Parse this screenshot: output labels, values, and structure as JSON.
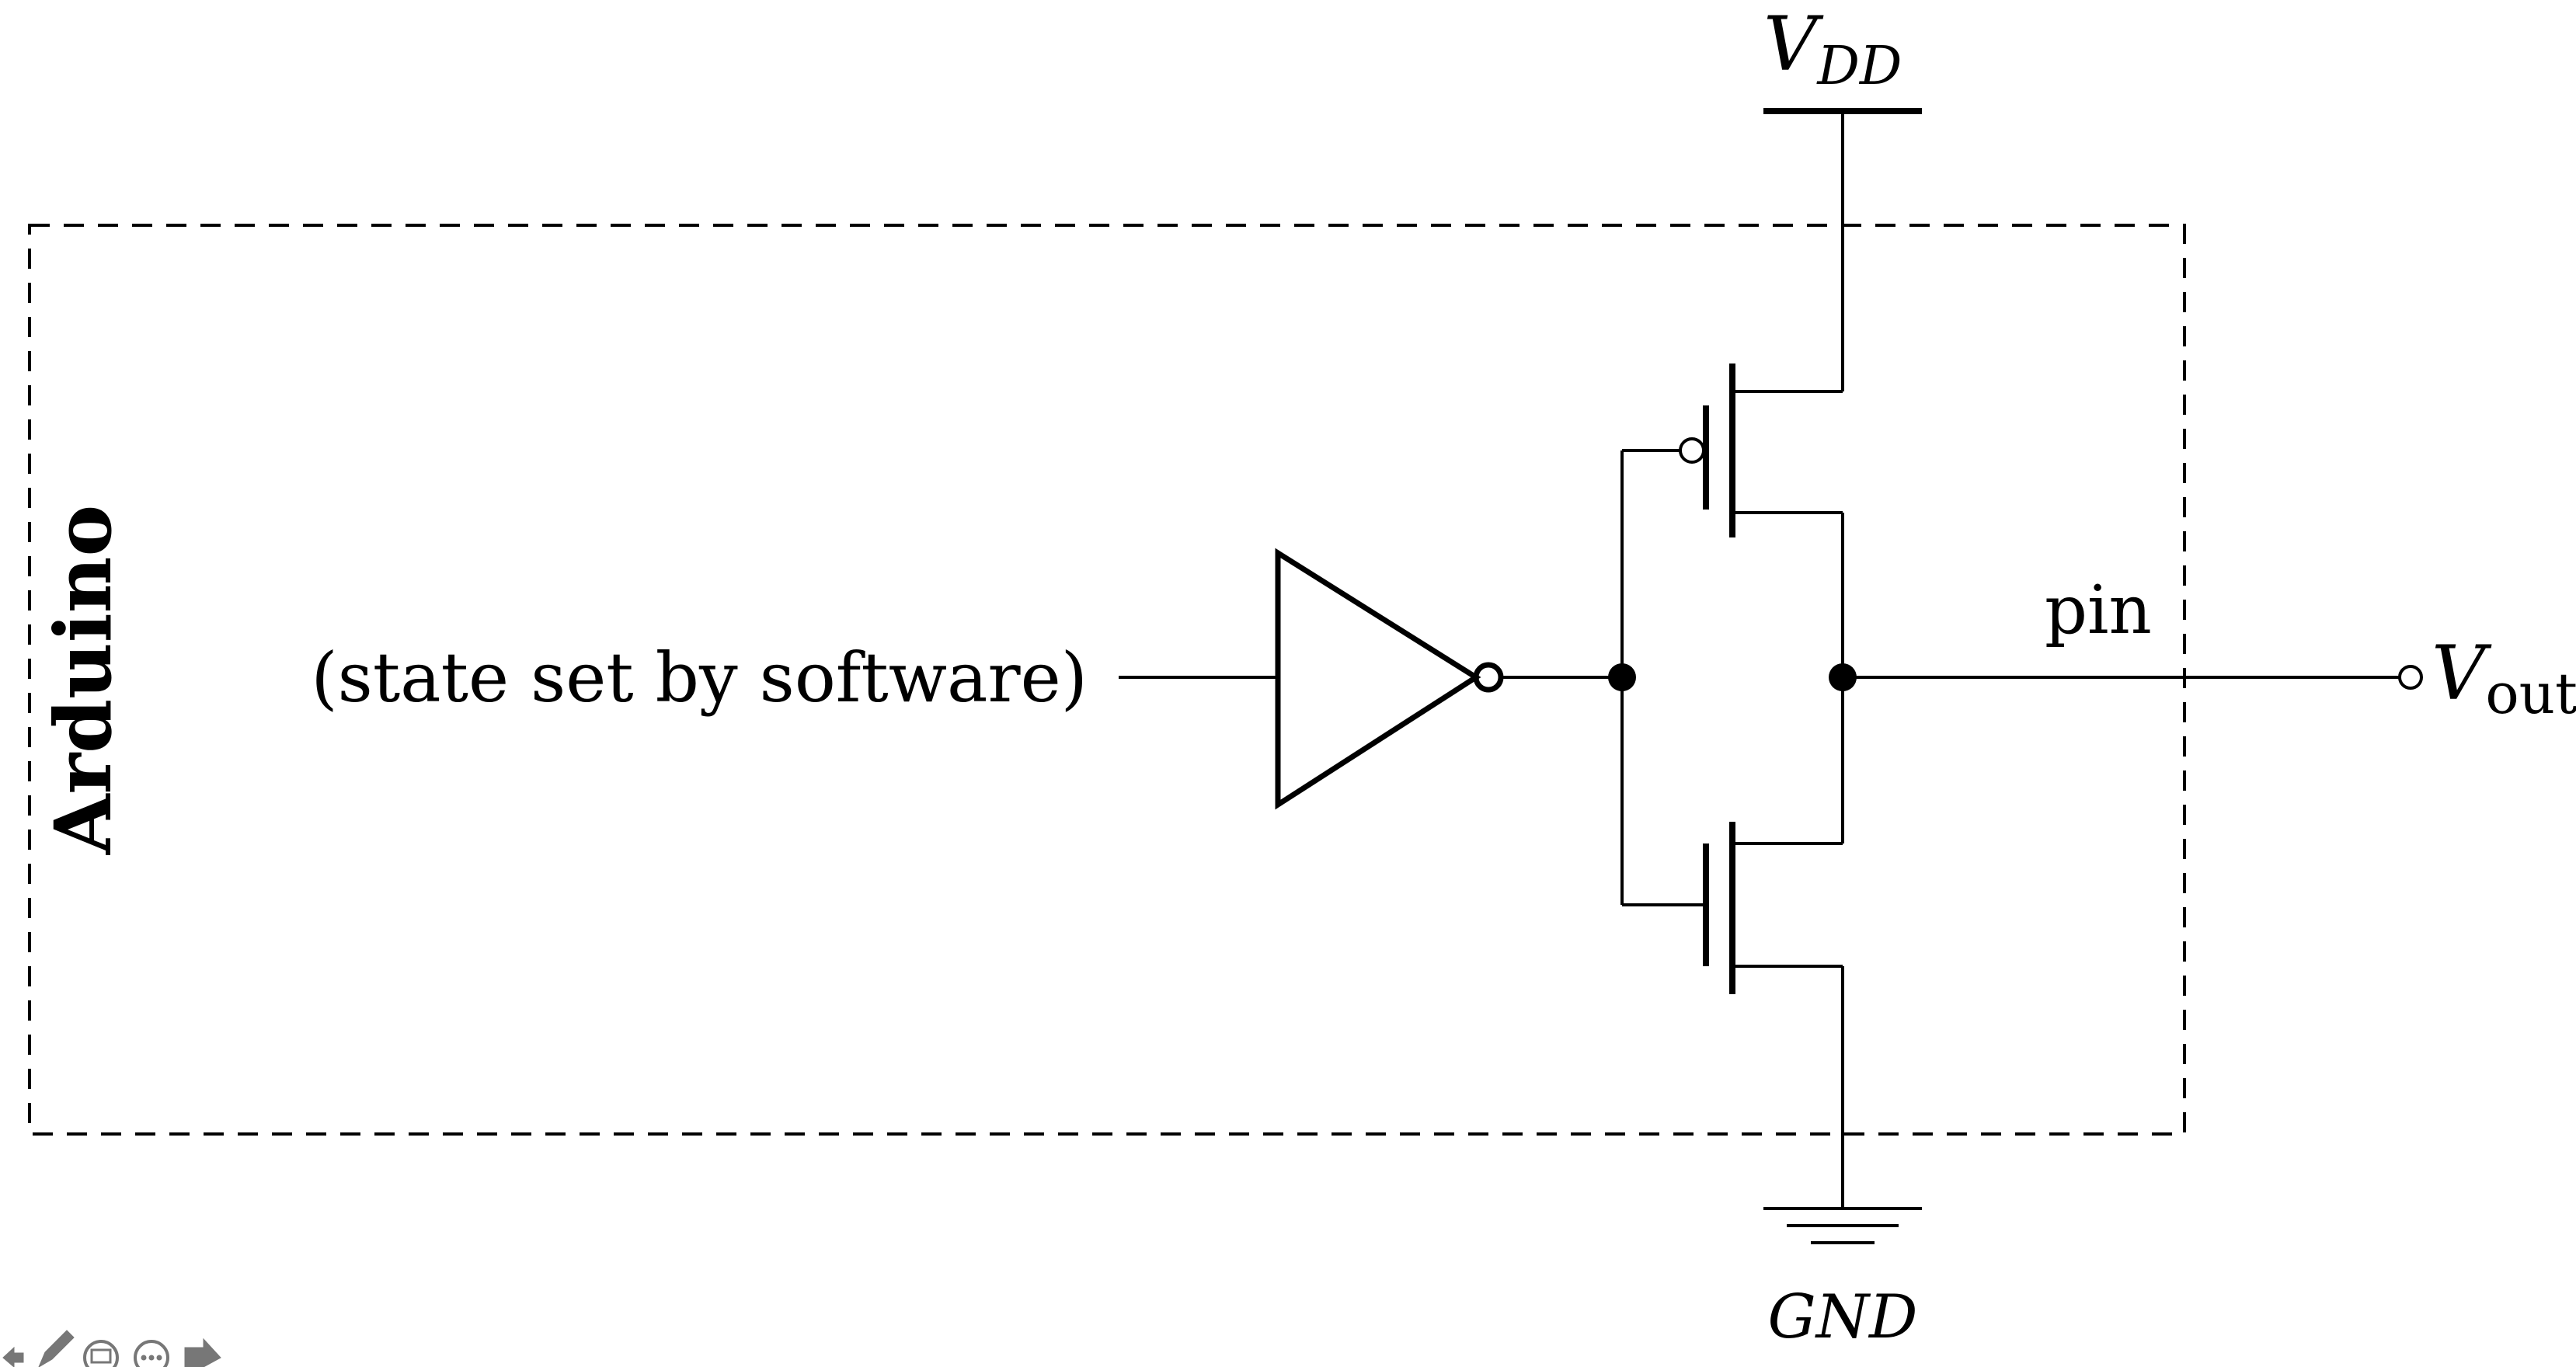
{
  "diagram": {
    "box_label": "Arduino",
    "input_label": "(state set by software)",
    "supply_label_main": "V",
    "supply_label_sub": "DD",
    "ground_label": "GND",
    "pin_label": "pin",
    "output_label_main": "V",
    "output_label_sub": "out"
  },
  "toolbar": {
    "icons": [
      "back-arrow-icon",
      "pencil-icon",
      "slide-icon",
      "more-icon",
      "forward-arrow-icon"
    ]
  },
  "colors": {
    "line": "#000000",
    "background": "#ffffff",
    "toolbar": "#777777"
  }
}
